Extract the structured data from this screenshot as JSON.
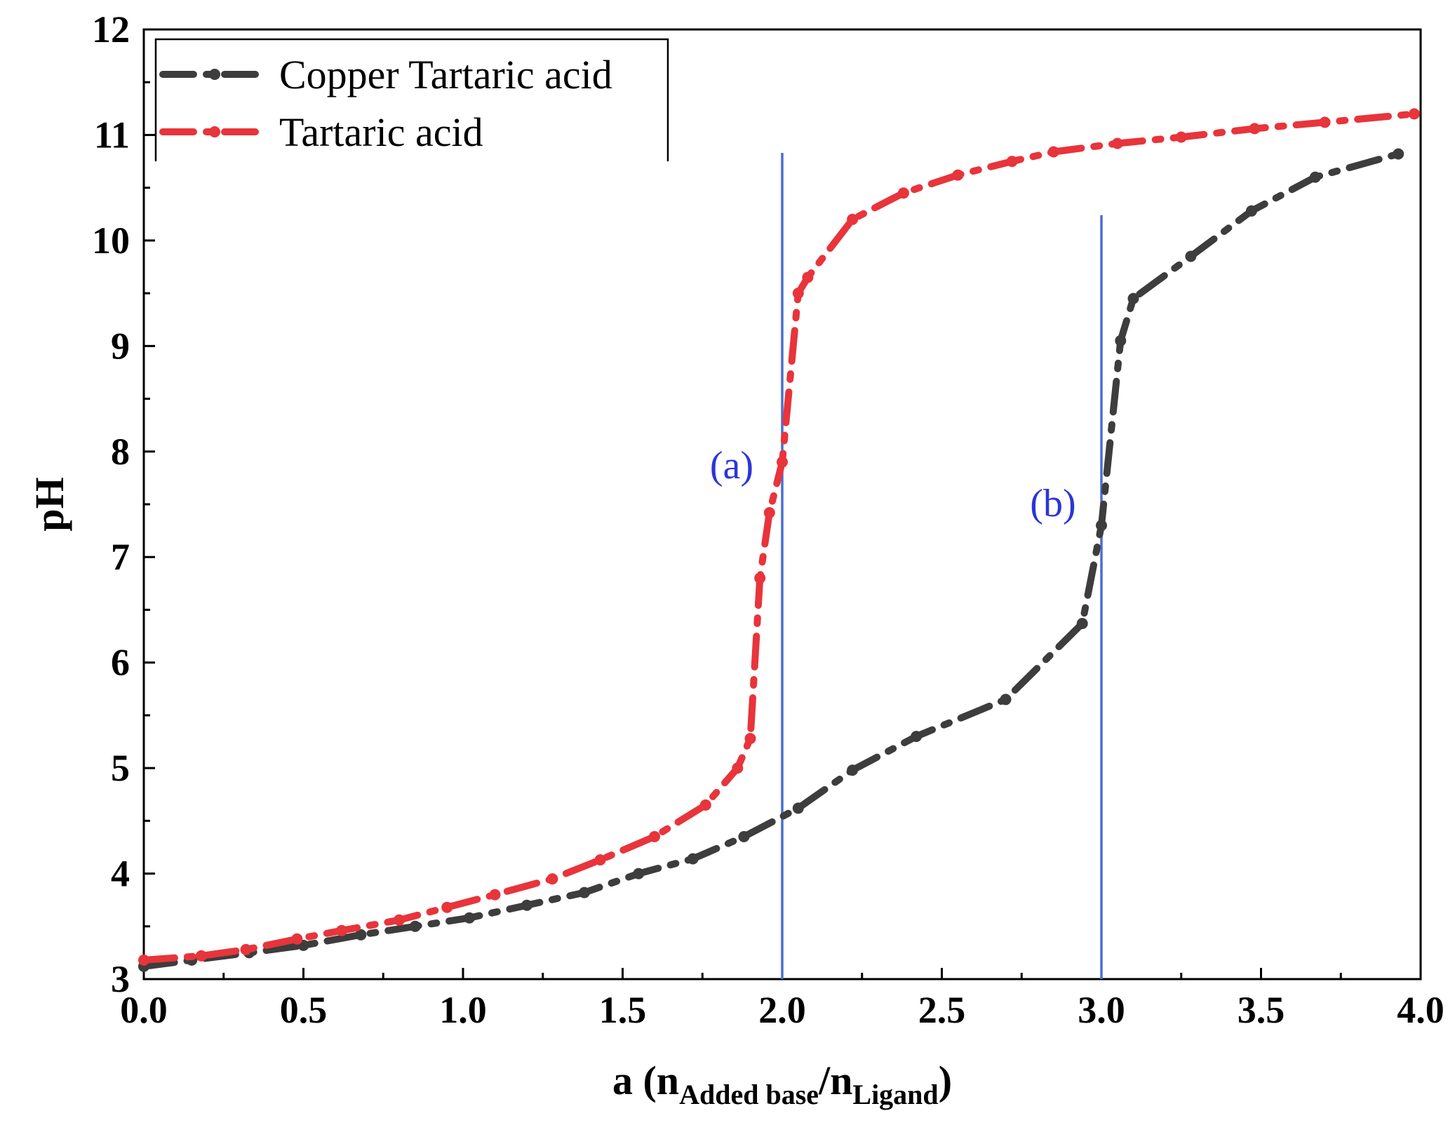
{
  "chart_data": {
    "type": "line",
    "title": "",
    "xlabel": {
      "prefix": "a (n",
      "sub1": "Added base",
      "mid": "/n",
      "sub2": "Ligand",
      "suffix": ")"
    },
    "ylabel": "pH",
    "xlim": [
      0.0,
      4.0
    ],
    "ylim": [
      3,
      12
    ],
    "xticks": [
      "0.0",
      "0.5",
      "1.0",
      "1.5",
      "2.0",
      "2.5",
      "3.0",
      "3.5",
      "4.0"
    ],
    "yticks": [
      "3",
      "4",
      "5",
      "6",
      "7",
      "8",
      "9",
      "10",
      "11",
      "12"
    ],
    "grid": false,
    "legend_position": "top-left",
    "series": [
      {
        "name": "Copper Tartaric acid",
        "color": "#3d3d3d",
        "line_style": "dash-dot",
        "marker": "circle",
        "points": [
          [
            0.0,
            3.12
          ],
          [
            0.15,
            3.18
          ],
          [
            0.33,
            3.25
          ],
          [
            0.5,
            3.32
          ],
          [
            0.68,
            3.42
          ],
          [
            0.85,
            3.5
          ],
          [
            1.02,
            3.58
          ],
          [
            1.2,
            3.7
          ],
          [
            1.38,
            3.82
          ],
          [
            1.55,
            4.0
          ],
          [
            1.72,
            4.14
          ],
          [
            1.88,
            4.35
          ],
          [
            2.05,
            4.62
          ],
          [
            2.22,
            4.98
          ],
          [
            2.42,
            5.3
          ],
          [
            2.7,
            5.65
          ],
          [
            2.94,
            6.37
          ],
          [
            3.0,
            7.3
          ],
          [
            3.06,
            9.05
          ],
          [
            3.1,
            9.45
          ],
          [
            3.28,
            9.85
          ],
          [
            3.47,
            10.28
          ],
          [
            3.67,
            10.6
          ],
          [
            3.93,
            10.82
          ]
        ]
      },
      {
        "name": "Tartaric acid",
        "color": "#e8343b",
        "line_style": "dash-dot",
        "marker": "circle",
        "points": [
          [
            0.0,
            3.18
          ],
          [
            0.18,
            3.22
          ],
          [
            0.32,
            3.28
          ],
          [
            0.48,
            3.38
          ],
          [
            0.62,
            3.46
          ],
          [
            0.8,
            3.56
          ],
          [
            0.95,
            3.68
          ],
          [
            1.1,
            3.8
          ],
          [
            1.28,
            3.95
          ],
          [
            1.43,
            4.13
          ],
          [
            1.6,
            4.35
          ],
          [
            1.76,
            4.65
          ],
          [
            1.86,
            5.0
          ],
          [
            1.9,
            5.28
          ],
          [
            1.93,
            6.8
          ],
          [
            1.96,
            7.42
          ],
          [
            2.0,
            7.9
          ],
          [
            2.05,
            9.5
          ],
          [
            2.08,
            9.65
          ],
          [
            2.22,
            10.2
          ],
          [
            2.38,
            10.45
          ],
          [
            2.55,
            10.62
          ],
          [
            2.72,
            10.75
          ],
          [
            2.85,
            10.84
          ],
          [
            3.05,
            10.92
          ],
          [
            3.25,
            10.98
          ],
          [
            3.48,
            11.06
          ],
          [
            3.7,
            11.12
          ],
          [
            3.98,
            11.2
          ]
        ]
      }
    ],
    "vertical_lines": [
      {
        "x": 2.0,
        "y_top": 10.83,
        "color": "#4a6fd0"
      },
      {
        "x": 3.0,
        "y_top": 10.24,
        "color": "#4a6fd0"
      }
    ],
    "annotations": [
      {
        "text": "(a)",
        "x": 1.91,
        "y": 7.88,
        "color": "#2b35d8"
      },
      {
        "text": "(b)",
        "x": 2.92,
        "y": 7.52,
        "color": "#2b35d8"
      }
    ]
  }
}
